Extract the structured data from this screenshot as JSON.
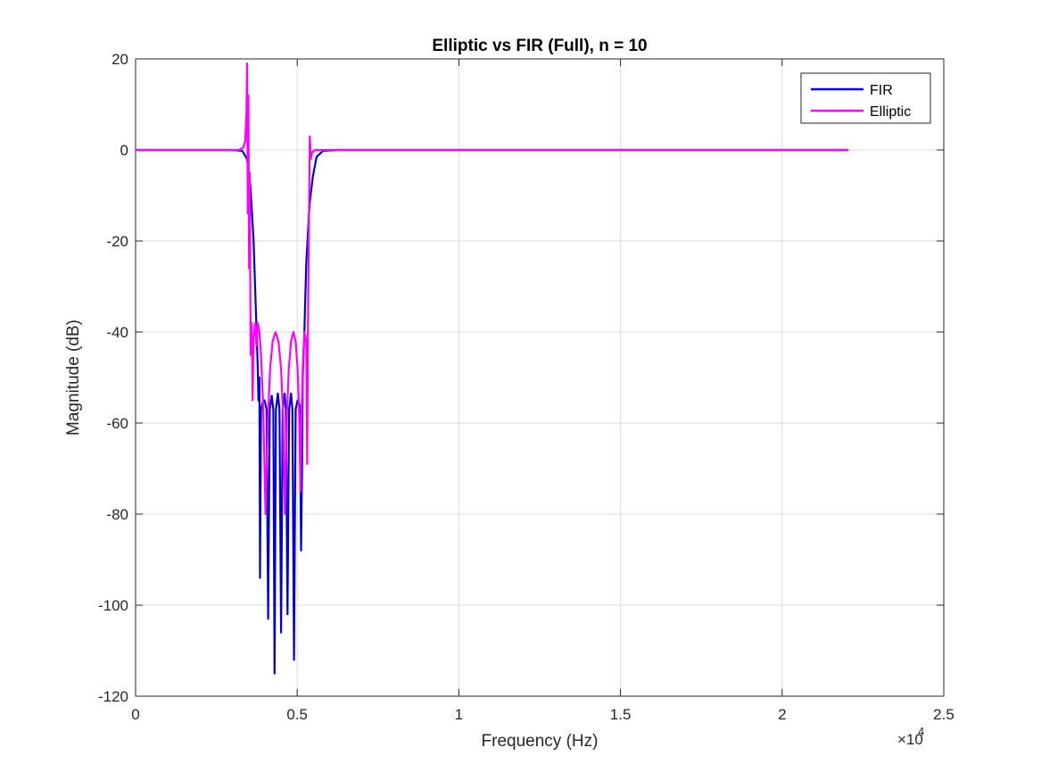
{
  "chart_data": {
    "type": "line",
    "title": "Elliptic vs FIR (Full), n = 10",
    "xlabel": "Frequency (Hz)",
    "ylabel": "Magnitude (dB)",
    "x_exponent_label": "×10",
    "x_exponent_power": "4",
    "xlim": [
      0,
      25000
    ],
    "ylim": [
      -120,
      20
    ],
    "x_ticks": [
      0,
      5000,
      10000,
      15000,
      20000,
      25000
    ],
    "x_tick_labels": [
      "0",
      "0.5",
      "1",
      "1.5",
      "2",
      "2.5"
    ],
    "y_ticks": [
      -120,
      -100,
      -80,
      -60,
      -40,
      -20,
      0,
      20
    ],
    "y_tick_labels": [
      "-120",
      "-100",
      "-80",
      "-60",
      "-40",
      "-20",
      "0",
      "20"
    ],
    "grid": true,
    "legend_position": "top-right",
    "series": [
      {
        "name": "FIR",
        "color": "#0000d9",
        "points": [
          [
            0,
            0
          ],
          [
            3000,
            0
          ],
          [
            3300,
            -0.2
          ],
          [
            3450,
            -2
          ],
          [
            3550,
            -8
          ],
          [
            3650,
            -20
          ],
          [
            3720,
            -35
          ],
          [
            3780,
            -48
          ],
          [
            3800,
            -55
          ],
          [
            3830,
            -50
          ],
          [
            3850,
            -94
          ],
          [
            3880,
            -57
          ],
          [
            3930,
            -55.5
          ],
          [
            3990,
            -55
          ],
          [
            4050,
            -57
          ],
          [
            4100,
            -103
          ],
          [
            4150,
            -57
          ],
          [
            4210,
            -54
          ],
          [
            4260,
            -57
          ],
          [
            4300,
            -115
          ],
          [
            4340,
            -57
          ],
          [
            4400,
            -53.5
          ],
          [
            4450,
            -57
          ],
          [
            4500,
            -106
          ],
          [
            4550,
            -57
          ],
          [
            4610,
            -53.5
          ],
          [
            4650,
            -57
          ],
          [
            4700,
            -102
          ],
          [
            4750,
            -57
          ],
          [
            4810,
            -53.5
          ],
          [
            4850,
            -57
          ],
          [
            4900,
            -112
          ],
          [
            4950,
            -57
          ],
          [
            5010,
            -55
          ],
          [
            5080,
            -56
          ],
          [
            5120,
            -88
          ],
          [
            5150,
            -70
          ],
          [
            5170,
            -50
          ],
          [
            5220,
            -40
          ],
          [
            5280,
            -25
          ],
          [
            5380,
            -12
          ],
          [
            5480,
            -6
          ],
          [
            5600,
            -1.5
          ],
          [
            5800,
            -0.2
          ],
          [
            6200,
            0
          ],
          [
            22050,
            0
          ]
        ]
      },
      {
        "name": "Elliptic",
        "color": "#ff00ff",
        "points": [
          [
            0,
            0
          ],
          [
            3200,
            0
          ],
          [
            3330,
            0.5
          ],
          [
            3390,
            2
          ],
          [
            3430,
            8
          ],
          [
            3450,
            19
          ],
          [
            3470,
            -14
          ],
          [
            3490,
            12
          ],
          [
            3510,
            -26
          ],
          [
            3530,
            -5
          ],
          [
            3560,
            -45
          ],
          [
            3590,
            -38
          ],
          [
            3620,
            -55
          ],
          [
            3650,
            -41
          ],
          [
            3700,
            -38
          ],
          [
            3740,
            -43
          ],
          [
            3780,
            -38
          ],
          [
            3830,
            -40
          ],
          [
            3880,
            -45
          ],
          [
            3940,
            -55
          ],
          [
            3990,
            -70
          ],
          [
            4020,
            -80
          ],
          [
            4050,
            -70
          ],
          [
            4100,
            -58
          ],
          [
            4160,
            -48
          ],
          [
            4240,
            -42
          ],
          [
            4330,
            -40
          ],
          [
            4420,
            -42
          ],
          [
            4500,
            -48
          ],
          [
            4560,
            -58
          ],
          [
            4600,
            -72
          ],
          [
            4620,
            -80
          ],
          [
            4640,
            -72
          ],
          [
            4680,
            -58
          ],
          [
            4740,
            -48
          ],
          [
            4810,
            -42
          ],
          [
            4880,
            -40
          ],
          [
            4950,
            -42
          ],
          [
            5010,
            -48
          ],
          [
            5060,
            -58
          ],
          [
            5100,
            -75
          ],
          [
            5130,
            -60
          ],
          [
            5170,
            -48
          ],
          [
            5220,
            -40
          ],
          [
            5280,
            -42
          ],
          [
            5310,
            -69
          ],
          [
            5330,
            -40
          ],
          [
            5360,
            -18
          ],
          [
            5390,
            3
          ],
          [
            5420,
            -2
          ],
          [
            5460,
            -0.5
          ],
          [
            5550,
            0
          ],
          [
            22050,
            0
          ]
        ]
      }
    ]
  }
}
